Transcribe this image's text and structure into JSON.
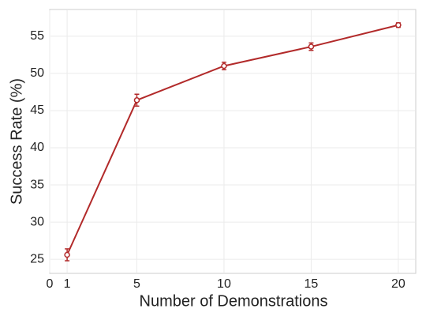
{
  "chart_data": {
    "type": "line",
    "x_label": "Number of Demonstrations",
    "y_label": "Success Rate (%)",
    "series": [
      {
        "color": "#b22a2a",
        "x": [
          1,
          5,
          10,
          15,
          20
        ],
        "values": [
          25.6,
          46.4,
          51.0,
          53.6,
          56.5
        ],
        "errors": [
          0.8,
          0.8,
          0.5,
          0.5,
          0.3
        ]
      }
    ],
    "xlim": [
      0,
      21
    ],
    "ylim": [
      23.1,
      58.6
    ],
    "xticks": [
      0,
      1,
      5,
      10,
      15,
      20
    ],
    "yticks": [
      25,
      30,
      35,
      40,
      45,
      50,
      55
    ],
    "grid": true
  }
}
